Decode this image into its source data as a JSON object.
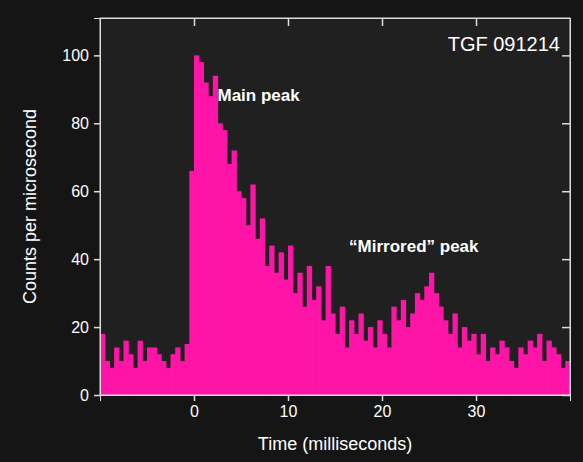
{
  "chart_data": {
    "type": "histogram",
    "title": "TGF 091214",
    "x_label": "Time (milliseconds)",
    "y_label": "Counts per microsecond",
    "annotations": [
      "Main peak",
      "“Mirrored” peak"
    ],
    "bins": [
      -10,
      -9.5,
      -9,
      -8.5,
      -8,
      -7.5,
      -7,
      -6.5,
      -6,
      -5.5,
      -5,
      -4.5,
      -4,
      -3.5,
      -3,
      -2.5,
      -2,
      -1.5,
      -1,
      -0.5,
      0,
      0.5,
      1,
      1.5,
      2,
      2.5,
      3,
      3.5,
      4,
      4.5,
      5,
      5.5,
      6,
      6.5,
      7,
      7.5,
      8,
      8.5,
      9,
      9.5,
      10,
      10.5,
      11,
      11.5,
      12,
      12.5,
      13,
      13.5,
      14,
      14.5,
      15,
      15.5,
      16,
      16.5,
      17,
      17.5,
      18,
      18.5,
      19,
      19.5,
      20,
      20.5,
      21,
      21.5,
      22,
      22.5,
      23,
      23.5,
      24,
      24.5,
      25,
      25.5,
      26,
      26.5,
      27,
      27.5,
      28,
      28.5,
      29,
      29.5,
      30,
      30.5,
      31,
      31.5,
      32,
      32.5,
      33,
      33.5,
      34,
      34.5,
      35,
      35.5,
      36,
      36.5,
      37,
      37.5,
      38,
      38.5,
      39,
      39.5,
      40
    ],
    "values": [
      18,
      10,
      8,
      14,
      10,
      16,
      12,
      8,
      16,
      10,
      14,
      14,
      12,
      10,
      8,
      12,
      14,
      10,
      15,
      66,
      100,
      98,
      92,
      88,
      94,
      80,
      78,
      68,
      72,
      60,
      58,
      50,
      62,
      46,
      52,
      38,
      44,
      36,
      42,
      34,
      44,
      30,
      36,
      26,
      38,
      28,
      32,
      22,
      38,
      24,
      18,
      26,
      14,
      22,
      18,
      24,
      16,
      20,
      14,
      22,
      18,
      14,
      26,
      22,
      28,
      20,
      24,
      30,
      28,
      32,
      36,
      30,
      26,
      22,
      18,
      24,
      14,
      20,
      16,
      18,
      12,
      18,
      10,
      14,
      12,
      16,
      14,
      10,
      8,
      14,
      12,
      16,
      14,
      18,
      10,
      16,
      14,
      12,
      8,
      10
    ],
    "color": "#ff14a8",
    "xlim": [
      -10,
      40
    ],
    "xticks": [
      0,
      10,
      20,
      30
    ],
    "ylim": [
      0,
      111
    ],
    "yticks": [
      0,
      20,
      40,
      60,
      80,
      100
    ],
    "grid": false
  }
}
